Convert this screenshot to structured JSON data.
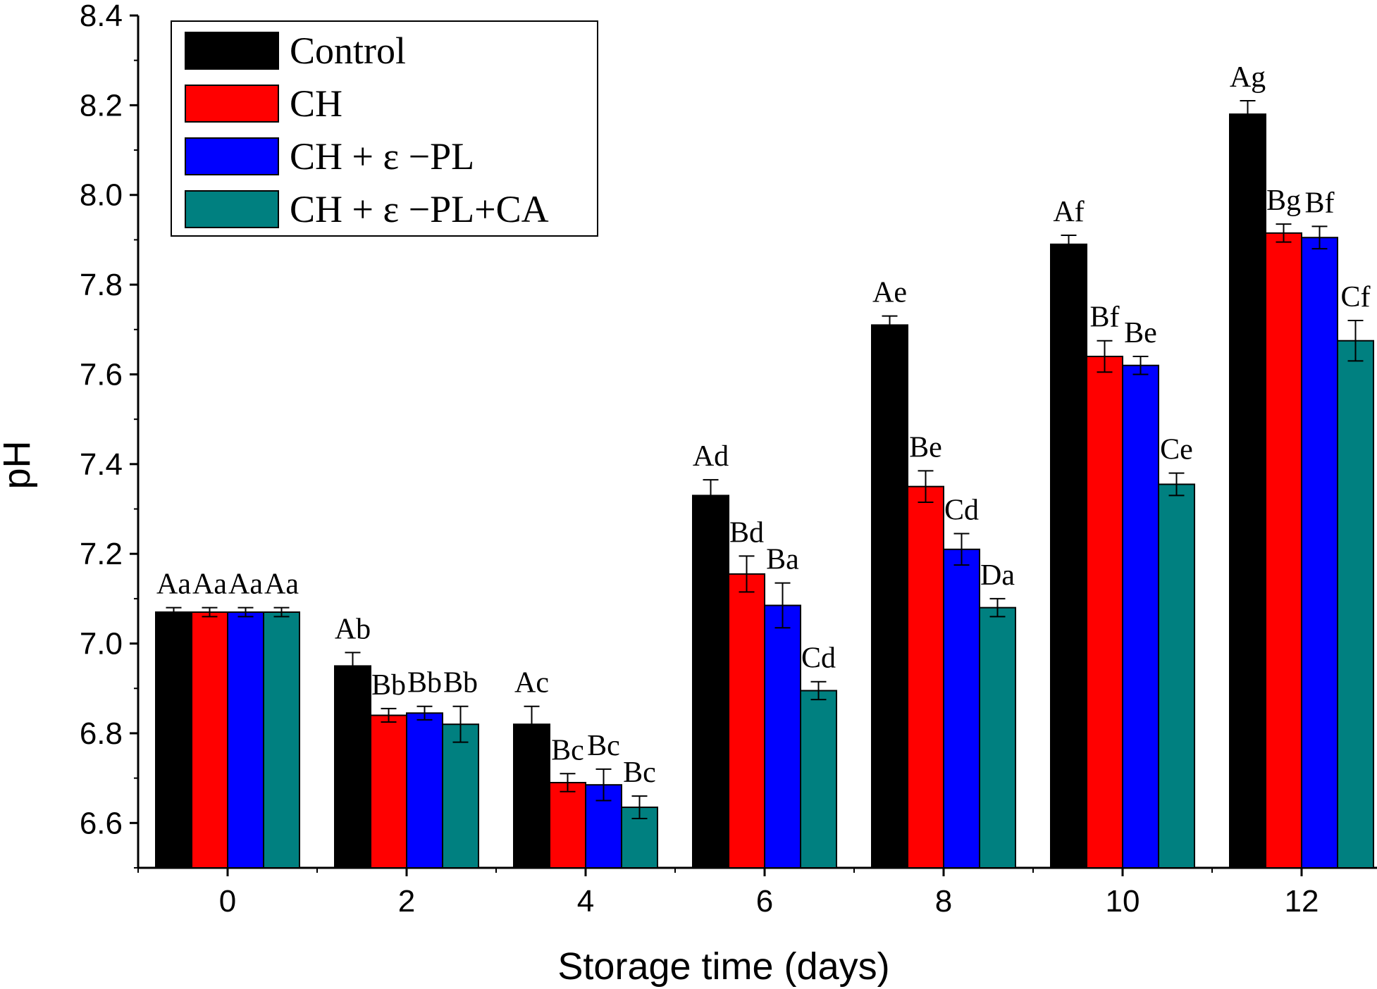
{
  "chart_data": {
    "type": "bar",
    "xlabel": "Storage time (days)",
    "ylabel": "pH",
    "ylim": [
      6.5,
      8.4
    ],
    "yticks": [
      "6.6",
      "6.8",
      "7.0",
      "7.2",
      "7.4",
      "7.6",
      "7.8",
      "8.0",
      "8.2",
      "8.4"
    ],
    "categories": [
      "0",
      "2",
      "4",
      "6",
      "8",
      "10",
      "12"
    ],
    "legend_position": "top-left",
    "series": [
      {
        "name": "Control",
        "color": "#000000",
        "values": [
          7.07,
          6.95,
          6.82,
          7.33,
          7.71,
          7.89,
          8.18
        ],
        "errors": [
          0.01,
          0.03,
          0.04,
          0.035,
          0.02,
          0.02,
          0.03
        ],
        "labels": [
          "Aa",
          "Ab",
          "Ac",
          "Ad",
          "Ae",
          "Af",
          "Ag"
        ]
      },
      {
        "name": "CH",
        "color": "#ff0000",
        "values": [
          7.07,
          6.84,
          6.69,
          7.155,
          7.35,
          7.64,
          7.915
        ],
        "errors": [
          0.01,
          0.015,
          0.02,
          0.04,
          0.035,
          0.035,
          0.02
        ],
        "labels": [
          "Aa",
          "Bb",
          "Bc",
          "Bd",
          "Be",
          "Bf",
          "Bg"
        ]
      },
      {
        "name": "CH + ε −PL",
        "color": "#0000ff",
        "values": [
          7.07,
          6.845,
          6.685,
          7.085,
          7.21,
          7.62,
          7.905
        ],
        "errors": [
          0.01,
          0.015,
          0.035,
          0.05,
          0.035,
          0.02,
          0.025
        ],
        "labels": [
          "Aa",
          "Bb",
          "Bc",
          "Ba",
          "Cd",
          "Be",
          "Bf"
        ]
      },
      {
        "name": "CH + ε −PL+CA",
        "color": "#008080",
        "values": [
          7.07,
          6.82,
          6.635,
          6.895,
          7.08,
          7.355,
          7.675
        ],
        "errors": [
          0.01,
          0.04,
          0.025,
          0.02,
          0.02,
          0.025,
          0.045
        ],
        "labels": [
          "Aa",
          "Bb",
          "Bc",
          "Cd",
          "Da",
          "Ce",
          "Cf"
        ]
      }
    ]
  }
}
